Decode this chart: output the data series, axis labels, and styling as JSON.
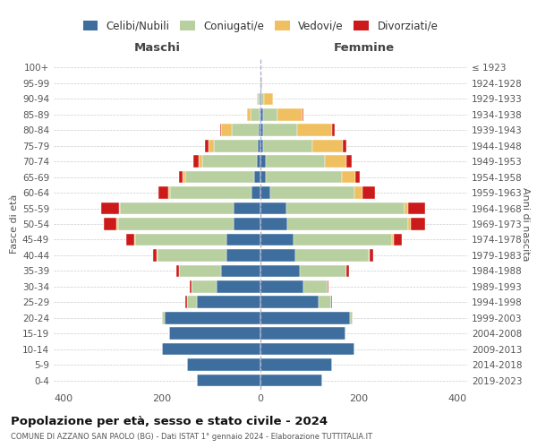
{
  "age_groups": [
    "0-4",
    "5-9",
    "10-14",
    "15-19",
    "20-24",
    "25-29",
    "30-34",
    "35-39",
    "40-44",
    "45-49",
    "50-54",
    "55-59",
    "60-64",
    "65-69",
    "70-74",
    "75-79",
    "80-84",
    "85-89",
    "90-94",
    "95-99",
    "100+"
  ],
  "birth_years": [
    "2019-2023",
    "2014-2018",
    "2009-2013",
    "2004-2008",
    "1999-2003",
    "1994-1998",
    "1989-1993",
    "1984-1988",
    "1979-1983",
    "1974-1978",
    "1969-1973",
    "1964-1968",
    "1959-1963",
    "1954-1958",
    "1949-1953",
    "1944-1948",
    "1939-1943",
    "1934-1938",
    "1929-1933",
    "1924-1928",
    "≤ 1923"
  ],
  "colors": {
    "celibi": "#3d6e9e",
    "coniugati": "#b8cfa0",
    "vedovi": "#f0c060",
    "divorziati": "#cc1a1a"
  },
  "maschi": {
    "celibi": [
      130,
      150,
      200,
      185,
      195,
      130,
      90,
      80,
      70,
      70,
      55,
      55,
      18,
      12,
      8,
      5,
      3,
      2,
      1,
      0,
      0
    ],
    "coniugati": [
      0,
      0,
      0,
      0,
      5,
      20,
      50,
      85,
      140,
      185,
      235,
      230,
      165,
      140,
      110,
      90,
      55,
      18,
      4,
      0,
      0
    ],
    "vedovi": [
      0,
      0,
      0,
      0,
      0,
      0,
      0,
      1,
      1,
      2,
      3,
      3,
      4,
      6,
      8,
      10,
      22,
      7,
      2,
      0,
      0
    ],
    "divorziati": [
      0,
      0,
      0,
      0,
      0,
      2,
      4,
      5,
      8,
      15,
      25,
      35,
      20,
      8,
      10,
      8,
      2,
      0,
      0,
      0,
      0
    ]
  },
  "femmine": {
    "celibi": [
      125,
      145,
      190,
      172,
      182,
      118,
      88,
      80,
      70,
      68,
      55,
      52,
      20,
      10,
      10,
      5,
      5,
      5,
      2,
      1,
      0
    ],
    "coniugati": [
      0,
      0,
      0,
      0,
      5,
      25,
      48,
      95,
      150,
      200,
      245,
      240,
      170,
      155,
      120,
      100,
      70,
      30,
      5,
      1,
      0
    ],
    "vedovi": [
      0,
      0,
      0,
      0,
      0,
      0,
      0,
      0,
      1,
      2,
      5,
      8,
      18,
      28,
      45,
      62,
      70,
      50,
      18,
      2,
      0
    ],
    "divorziati": [
      0,
      0,
      0,
      0,
      0,
      2,
      2,
      5,
      8,
      18,
      30,
      35,
      25,
      8,
      10,
      8,
      5,
      2,
      0,
      0,
      0
    ]
  },
  "title1": "Popolazione per età, sesso e stato civile - 2024",
  "title2": "COMUNE DI AZZANO SAN PAOLO (BG) - Dati ISTAT 1° gennaio 2024 - Elaborazione TUTTITALIA.IT",
  "xlabel_left": "Maschi",
  "xlabel_right": "Femmine",
  "ylabel_left": "Fasce di età",
  "ylabel_right": "Anni di nascita",
  "legend_labels": [
    "Celibi/Nubili",
    "Coniugati/e",
    "Vedovi/e",
    "Divorziati/e"
  ],
  "xlim": 420,
  "bg_color": "#ffffff",
  "plot_bg": "#ffffff"
}
